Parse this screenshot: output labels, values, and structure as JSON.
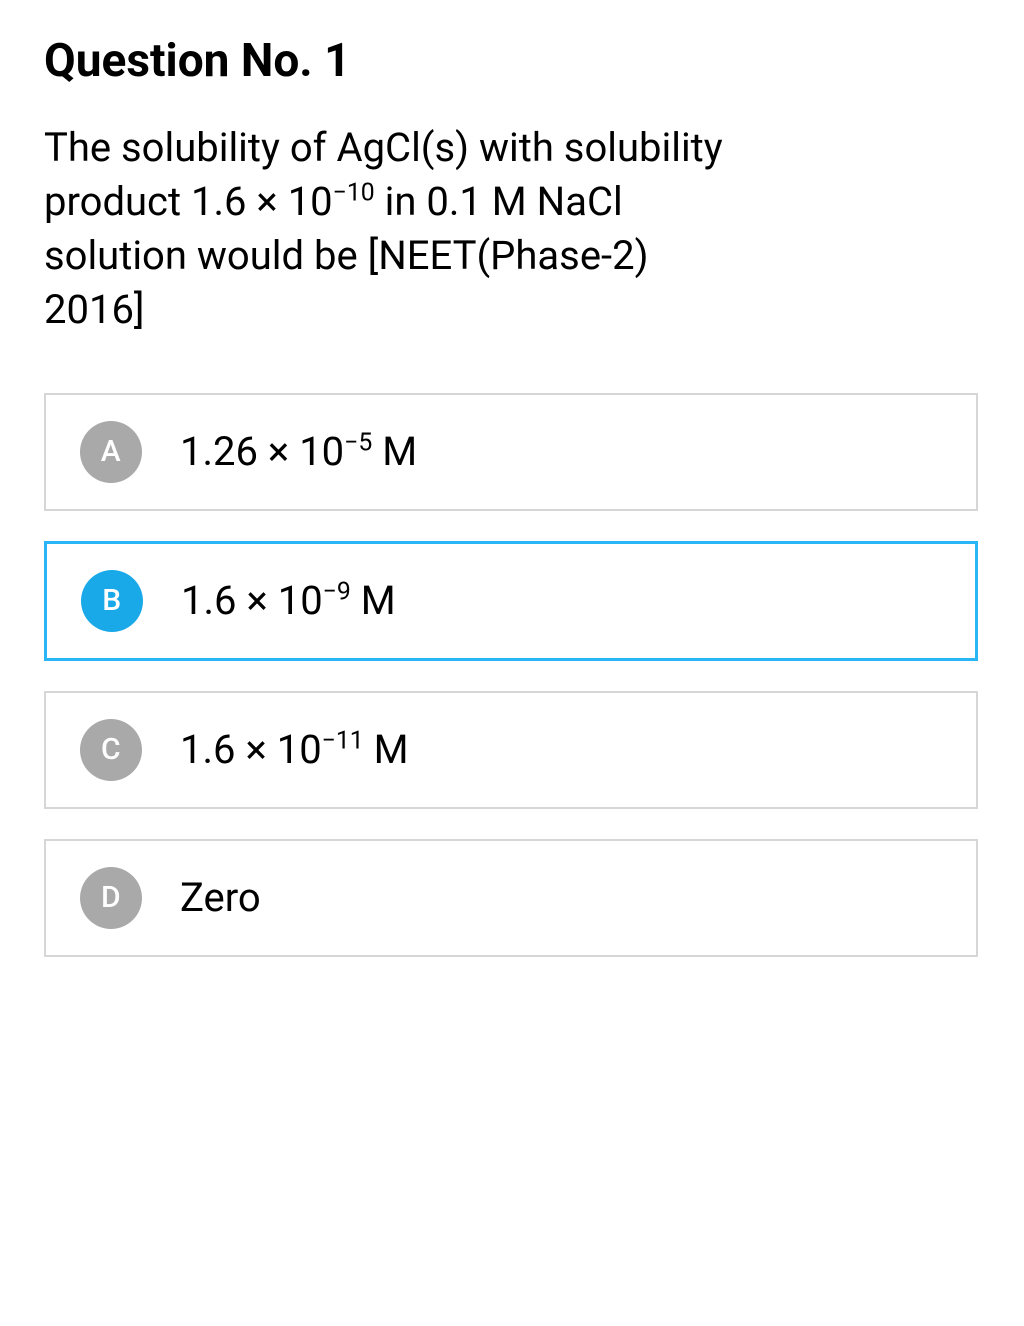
{
  "title": "Question No. 1",
  "question": {
    "line1": "The solubility of AgCl(s) with solubility",
    "line2_prefix": "product 1.6 × 10",
    "line2_exp": "−10",
    "line2_suffix": " in 0.1 M NaCl",
    "line3": "solution would be [NEET(Phase-2)",
    "line4": "2016]"
  },
  "style": {
    "unselected_border": "#d6d6d6",
    "selected_border": "#29b6f6",
    "unselected_circle": "#a9a9a9",
    "selected_circle": "#1aa9e8",
    "selected_border_width": "3px",
    "unselected_border_width": "2px"
  },
  "options": [
    {
      "letter": "A",
      "coef": "1.26",
      "exp": "−5",
      "unit": "M",
      "plain": null,
      "selected": false
    },
    {
      "letter": "B",
      "coef": "1.6",
      "exp": "−9",
      "unit": "M",
      "plain": null,
      "selected": true
    },
    {
      "letter": "C",
      "coef": "1.6",
      "exp": "−11",
      "unit": "M",
      "plain": null,
      "selected": false
    },
    {
      "letter": "D",
      "coef": null,
      "exp": null,
      "unit": null,
      "plain": "Zero",
      "selected": false
    }
  ]
}
